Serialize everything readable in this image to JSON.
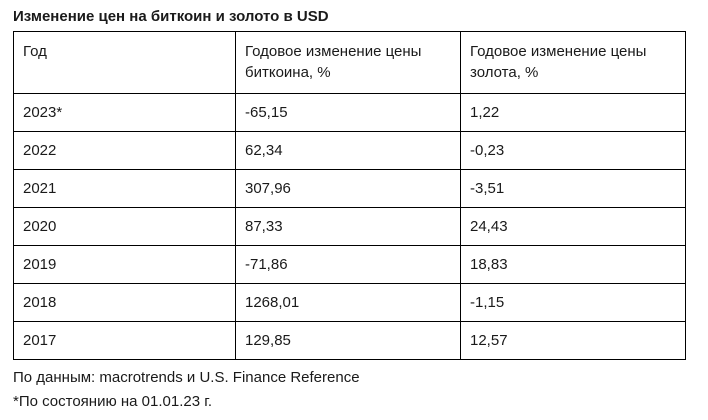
{
  "title": "Изменение цен на биткоин и золото в USD",
  "table": {
    "headers": [
      "Год",
      "Годовое изменение цены биткоина, %",
      "Годовое изменение цены золота, %"
    ],
    "rows": [
      [
        "2023*",
        "-65,15",
        "1,22"
      ],
      [
        "2022",
        "62,34",
        "-0,23"
      ],
      [
        "2021",
        "307,96",
        "-3,51"
      ],
      [
        "2020",
        "87,33",
        "24,43"
      ],
      [
        "2019",
        "-71,86",
        "18,83"
      ],
      [
        "2018",
        "1268,01",
        "-1,15"
      ],
      [
        "2017",
        "129,85",
        "12,57"
      ]
    ]
  },
  "notes": {
    "source": "По данным: macrotrends и U.S. Finance Reference",
    "footnote": "*По состоянию на 01.01.23 г."
  }
}
